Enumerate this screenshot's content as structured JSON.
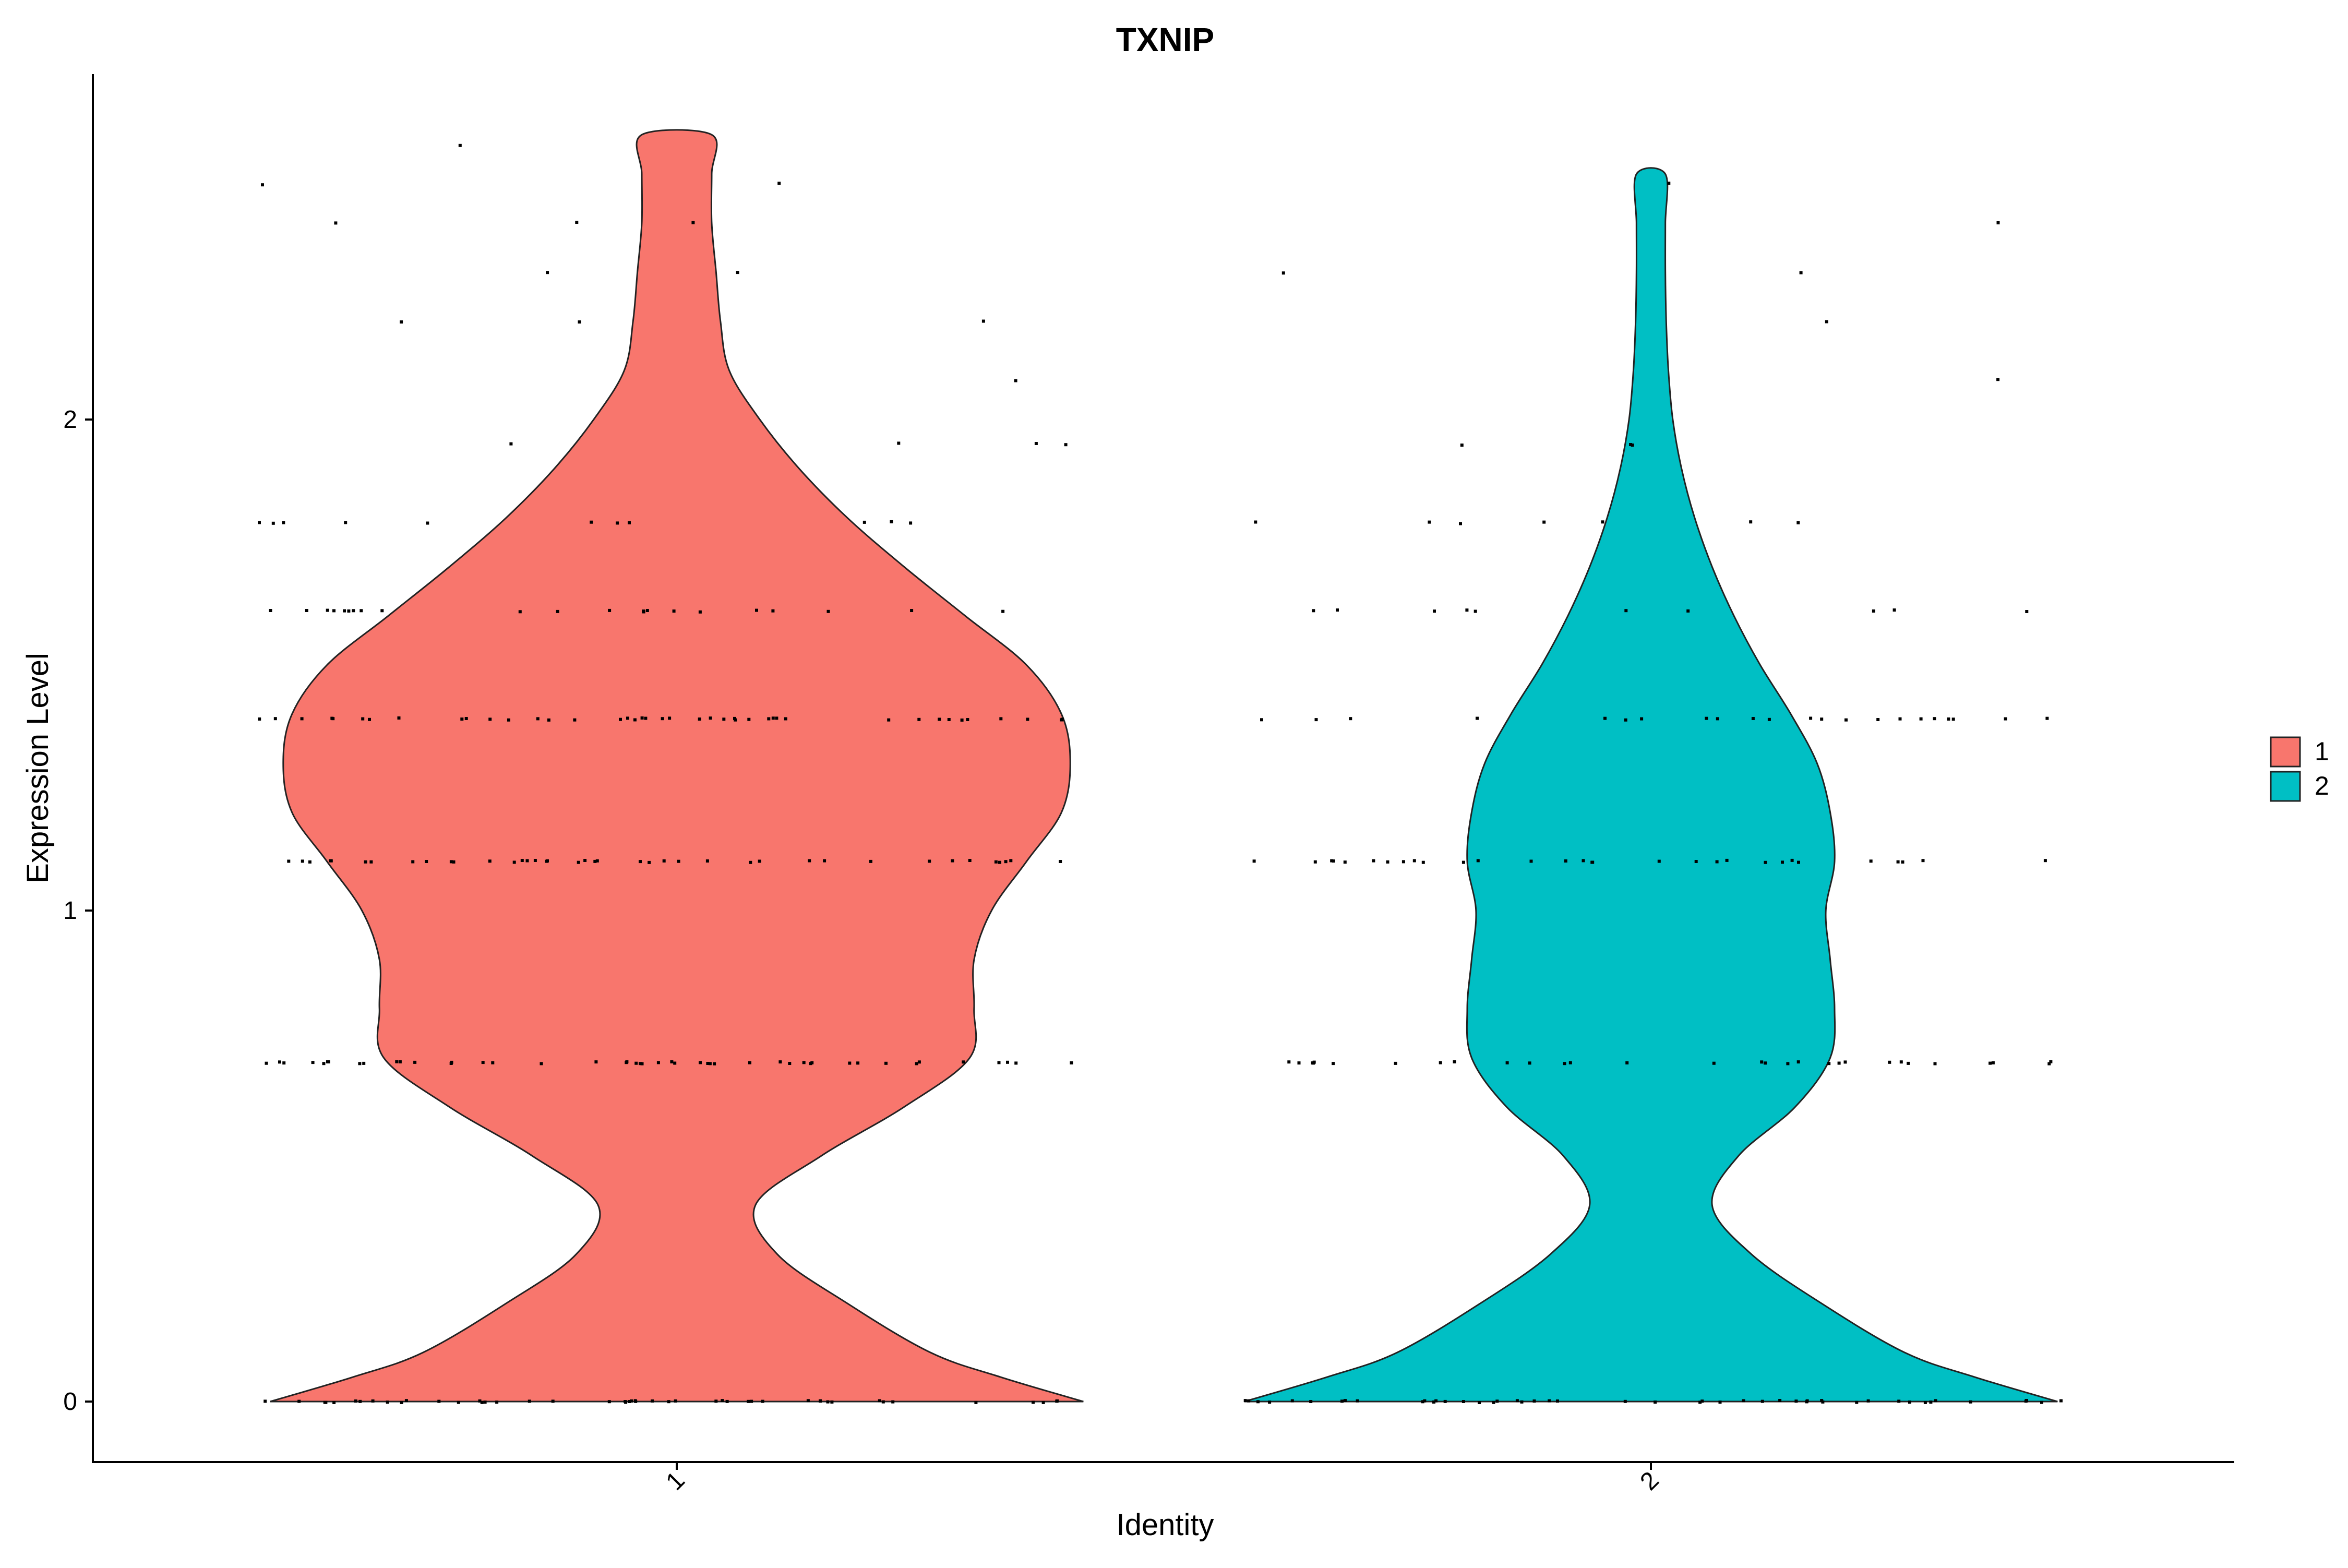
{
  "chart_data": {
    "type": "violin",
    "title": "TXNIP",
    "xlabel": "Identity",
    "ylabel": "Expression Level",
    "categories": [
      "1",
      "2"
    ],
    "ylim": [
      -0.12,
      2.68
    ],
    "yticks": [
      0,
      1,
      2
    ],
    "ytick_labels": [
      "0",
      "1",
      "2"
    ],
    "grid": false,
    "legend_position": "right",
    "legend": [
      {
        "label": "1",
        "color": "#F8766D"
      },
      {
        "label": "2",
        "color": "#00BFC4"
      }
    ],
    "series": [
      {
        "category": "1",
        "color": "#F8766D",
        "y_range": [
          0,
          2.58
        ],
        "density_profile": [
          [
            0.0,
            0.93
          ],
          [
            0.05,
            0.74
          ],
          [
            0.1,
            0.58
          ],
          [
            0.2,
            0.39
          ],
          [
            0.3,
            0.23
          ],
          [
            0.4,
            0.18
          ],
          [
            0.5,
            0.33
          ],
          [
            0.6,
            0.52
          ],
          [
            0.7,
            0.67
          ],
          [
            0.8,
            0.68
          ],
          [
            0.9,
            0.68
          ],
          [
            1.0,
            0.72
          ],
          [
            1.1,
            0.8
          ],
          [
            1.2,
            0.88
          ],
          [
            1.3,
            0.9
          ],
          [
            1.4,
            0.88
          ],
          [
            1.5,
            0.8
          ],
          [
            1.6,
            0.66
          ],
          [
            1.7,
            0.52
          ],
          [
            1.8,
            0.39
          ],
          [
            1.9,
            0.28
          ],
          [
            2.0,
            0.19
          ],
          [
            2.1,
            0.12
          ],
          [
            2.2,
            0.1
          ],
          [
            2.3,
            0.09
          ],
          [
            2.4,
            0.08
          ],
          [
            2.5,
            0.08
          ],
          [
            2.58,
            0.08
          ]
        ],
        "jitter_points": {
          "0.0": 48,
          "0.69": 46,
          "1.1": 40,
          "1.39": 42,
          "1.61": 22,
          "1.79": 11,
          "1.95": 4,
          "2.08": 1,
          "2.2": 3,
          "2.3": 2,
          "2.4": 3,
          "2.48": 2,
          "2.56": 1
        }
      },
      {
        "category": "2",
        "color": "#00BFC4",
        "y_range": [
          0,
          2.5
        ],
        "density_profile": [
          [
            0.0,
            0.93
          ],
          [
            0.05,
            0.74
          ],
          [
            0.1,
            0.58
          ],
          [
            0.2,
            0.39
          ],
          [
            0.3,
            0.23
          ],
          [
            0.4,
            0.14
          ],
          [
            0.5,
            0.2
          ],
          [
            0.6,
            0.33
          ],
          [
            0.7,
            0.41
          ],
          [
            0.8,
            0.42
          ],
          [
            0.9,
            0.41
          ],
          [
            1.0,
            0.4
          ],
          [
            1.1,
            0.42
          ],
          [
            1.2,
            0.41
          ],
          [
            1.3,
            0.38
          ],
          [
            1.4,
            0.32
          ],
          [
            1.5,
            0.25
          ],
          [
            1.6,
            0.19
          ],
          [
            1.7,
            0.14
          ],
          [
            1.8,
            0.1
          ],
          [
            1.9,
            0.07
          ],
          [
            2.0,
            0.05
          ],
          [
            2.1,
            0.04
          ],
          [
            2.2,
            0.035
          ],
          [
            2.3,
            0.033
          ],
          [
            2.4,
            0.033
          ],
          [
            2.5,
            0.033
          ]
        ],
        "jitter_points": {
          "0.0": 48,
          "0.69": 30,
          "1.1": 30,
          "1.39": 22,
          "1.61": 10,
          "1.79": 7,
          "1.95": 3,
          "2.08": 1,
          "2.2": 1,
          "2.3": 2,
          "2.4": 1,
          "2.48": 1
        }
      }
    ]
  }
}
